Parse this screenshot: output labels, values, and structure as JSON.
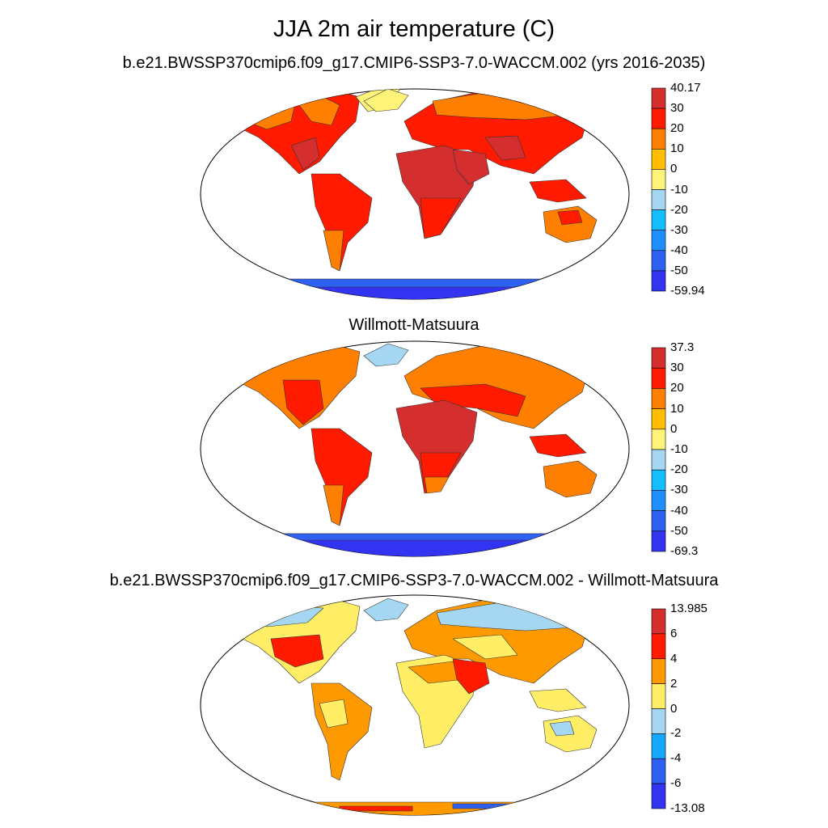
{
  "title": "JJA 2m air temperature (C)",
  "panels": [
    {
      "title": "b.e21.BWSSP370cmip6.f09_g17.CMIP6-SSP3-7.0-WACCM.002 (yrs 2016-2035)",
      "colorbar": {
        "labels": [
          "40.17",
          "30",
          "20",
          "10",
          "0",
          "-10",
          "-20",
          "-30",
          "-40",
          "-50",
          "-59.94"
        ],
        "colors": [
          "#d42e2e",
          "#ff1a00",
          "#ff7f00",
          "#ffbf00",
          "#fff37a",
          "#a6d7f2",
          "#14bfff",
          "#1f8fff",
          "#2e60f2",
          "#3333f2"
        ]
      }
    },
    {
      "title": "Willmott-Matsuura",
      "colorbar": {
        "labels": [
          "37.3",
          "30",
          "20",
          "10",
          "0",
          "-10",
          "-20",
          "-30",
          "-40",
          "-50",
          "-69.3"
        ],
        "colors": [
          "#d42e2e",
          "#ff1a00",
          "#ff7f00",
          "#ffbf00",
          "#fff37a",
          "#a6d7f2",
          "#14bfff",
          "#1f8fff",
          "#2e60f2",
          "#3333f2"
        ]
      }
    },
    {
      "title": "b.e21.BWSSP370cmip6.f09_g17.CMIP6-SSP3-7.0-WACCM.002 - Willmott-Matsuura",
      "colorbar": {
        "labels": [
          "13.985",
          "6",
          "4",
          "2",
          "0",
          "-2",
          "-4",
          "-6",
          "-13.08"
        ],
        "colors": [
          "#d42e2e",
          "#ff1a00",
          "#ff9900",
          "#ffee66",
          "#a6d7f2",
          "#14a8ff",
          "#2e60f2",
          "#3333f2"
        ]
      }
    }
  ]
}
